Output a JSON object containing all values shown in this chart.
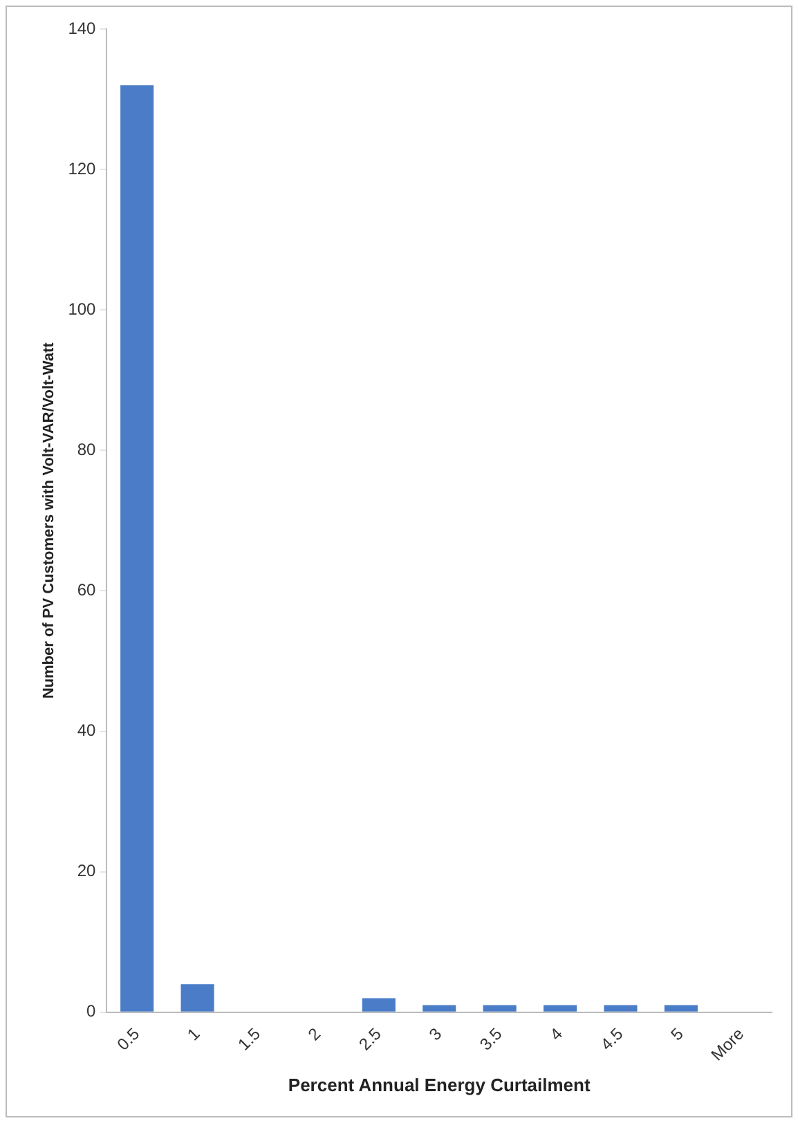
{
  "chart_data": {
    "type": "bar",
    "xlabel": "Percent Annual Energy Curtailment",
    "ylabel": "Number of PV Customers with Volt-VAR/Volt-Watt",
    "categories": [
      "0.5",
      "1",
      "1.5",
      "2",
      "2.5",
      "3",
      "3.5",
      "4",
      "4.5",
      "5",
      "More"
    ],
    "values": [
      132,
      4,
      0,
      0,
      2,
      1,
      1,
      1,
      1,
      1,
      0
    ],
    "color": "#4a7cc7",
    "ylim": [
      0,
      140
    ],
    "yticks": [
      0,
      20,
      40,
      60,
      80,
      100,
      120,
      140
    ],
    "grid": false,
    "legend": false
  }
}
